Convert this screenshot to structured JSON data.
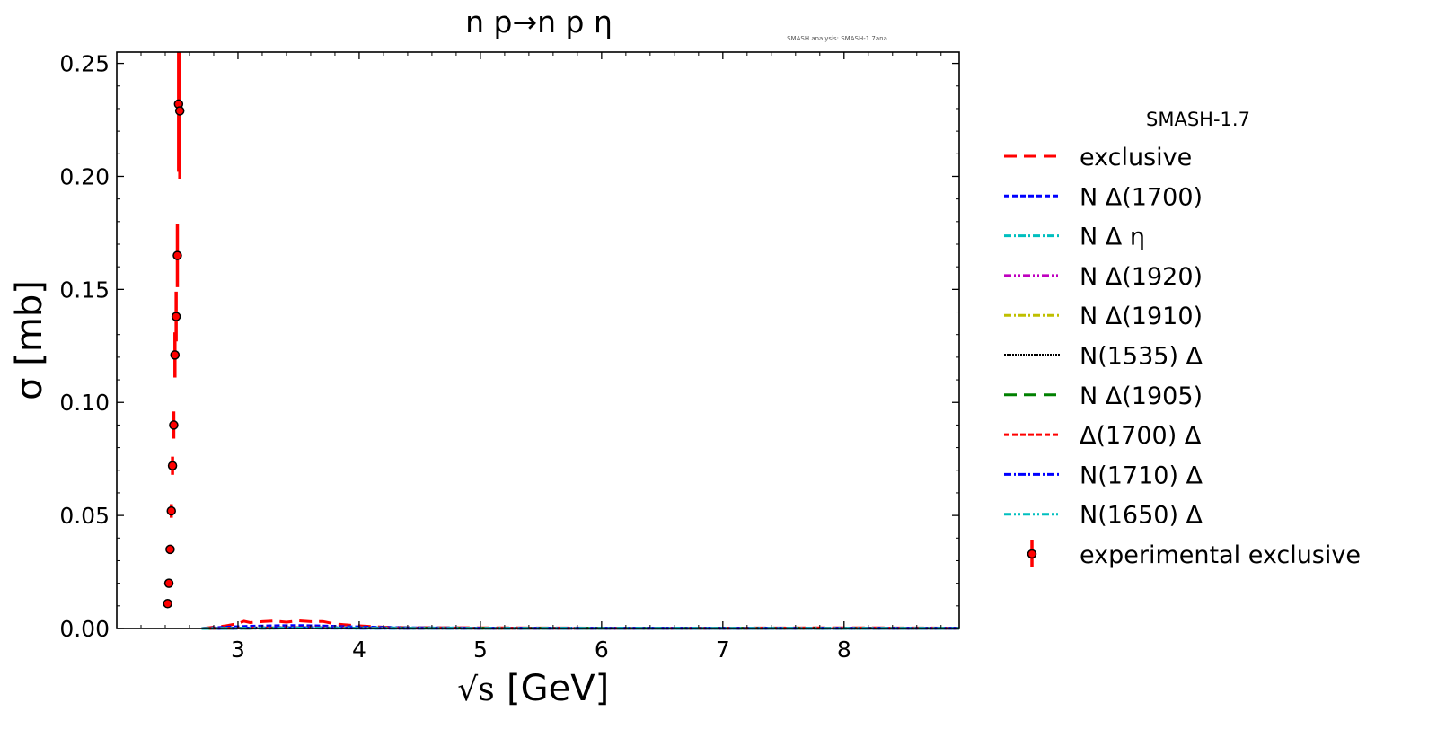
{
  "chart_data": {
    "type": "line",
    "title": "n p→n p η",
    "watermark": "SMASH analysis: SMASH-1.7ana",
    "xlabel_sqrt": "√s",
    "xlabel_unit": "[GeV]",
    "ylabel": "σ [mb]",
    "xlim": [
      2.0,
      8.95
    ],
    "ylim": [
      0,
      0.255
    ],
    "xticks": [
      3,
      4,
      5,
      6,
      7,
      8
    ],
    "yticks": [
      0.0,
      0.05,
      0.1,
      0.15,
      0.2,
      0.25
    ],
    "ytick_labels": [
      "0.00",
      "0.05",
      "0.10",
      "0.15",
      "0.20",
      "0.25"
    ],
    "legend_title": "SMASH-1.7",
    "legend_position": "outside right",
    "series": [
      {
        "name": "exclusive",
        "color": "#ff0000",
        "dash": "14,8",
        "x": [
          2.7,
          2.8,
          2.9,
          3.0,
          3.05,
          3.1,
          3.2,
          3.3,
          3.4,
          3.5,
          3.6,
          3.7,
          3.8,
          3.9,
          4.0,
          4.2,
          4.4,
          5.0,
          6.0,
          7.0,
          8.0,
          8.95
        ],
        "y": [
          0.0,
          0.0006,
          0.0012,
          0.0022,
          0.0032,
          0.0026,
          0.003,
          0.0033,
          0.0028,
          0.0034,
          0.003,
          0.0031,
          0.002,
          0.0016,
          0.0012,
          0.0006,
          0.0004,
          0.0003,
          0.0002,
          0.0002,
          0.0003,
          0.0002
        ]
      },
      {
        "name": "N Δ(1700)",
        "color": "#0000ff",
        "dash": "6,3",
        "x": [
          2.7,
          2.9,
          3.1,
          3.3,
          3.5,
          3.7,
          3.9,
          4.1,
          4.4,
          5.0,
          6.0,
          7.0,
          8.0,
          8.95
        ],
        "y": [
          0.0,
          0.0006,
          0.001,
          0.0012,
          0.0013,
          0.0011,
          0.0008,
          0.0006,
          0.0003,
          0.0002,
          0.0001,
          0.0001,
          0.0001,
          0.0001
        ]
      },
      {
        "name": "N Δ η",
        "color": "#00bfbf",
        "dash": "8,3,2,3",
        "x": [
          2.7,
          3.0,
          3.5,
          4.0,
          5.0,
          6.0,
          7.0,
          8.0,
          8.95
        ],
        "y": [
          0.0,
          0.0002,
          0.0004,
          0.0003,
          0.0002,
          0.0001,
          0.0001,
          0.0001,
          0.0001
        ]
      },
      {
        "name": "N Δ(1920)",
        "color": "#bf00bf",
        "dash": "8,3,2,3,2,3",
        "x": [
          2.7,
          3.0,
          3.5,
          4.0,
          5.0,
          6.0,
          7.0,
          8.0,
          8.95
        ],
        "y": [
          0.0,
          0.0002,
          0.0003,
          0.0002,
          0.0001,
          0.0001,
          0.0001,
          0.0001,
          0.0001
        ]
      },
      {
        "name": "N Δ(1910)",
        "color": "#bfbf00",
        "dash": "8,3,2,3",
        "x": [
          2.7,
          3.0,
          3.5,
          4.0,
          5.0,
          6.0,
          7.0,
          8.0,
          8.95
        ],
        "y": [
          0.0,
          0.0001,
          0.0002,
          0.0002,
          0.0001,
          0.0001,
          0.0001,
          0.0001,
          0.0001
        ]
      },
      {
        "name": "N(1535) Δ",
        "color": "#000000",
        "dash": "2,1",
        "x": [
          2.7,
          3.0,
          3.5,
          4.0,
          5.0,
          6.0,
          7.0,
          8.0,
          8.95
        ],
        "y": [
          0.0,
          0.0002,
          0.0003,
          0.0002,
          0.0001,
          0.0001,
          0.0001,
          0.0001,
          0.0001
        ]
      },
      {
        "name": "N Δ(1905)",
        "color": "#008000",
        "dash": "14,8",
        "x": [
          2.7,
          3.0,
          3.5,
          4.0,
          5.0,
          6.0,
          7.0,
          8.0,
          8.95
        ],
        "y": [
          0.0,
          0.0001,
          0.0002,
          0.0002,
          0.0001,
          0.0001,
          0.0001,
          0.0001,
          0.0001
        ]
      },
      {
        "name": "Δ(1700) Δ",
        "color": "#ff0000",
        "dash": "6,3",
        "x": [
          2.7,
          3.0,
          3.5,
          4.0,
          5.0,
          6.0,
          7.0,
          8.0,
          8.95
        ],
        "y": [
          0.0,
          0.0002,
          0.0003,
          0.0002,
          0.0001,
          0.0001,
          0.0001,
          0.0002,
          0.0001
        ]
      },
      {
        "name": "N(1710) Δ",
        "color": "#0000ff",
        "dash": "8,3,2,3",
        "x": [
          2.7,
          3.0,
          3.5,
          4.0,
          5.0,
          6.0,
          7.0,
          8.0,
          8.95
        ],
        "y": [
          0.0,
          0.0001,
          0.0002,
          0.0001,
          0.0001,
          0.0001,
          0.0001,
          0.0001,
          0.0001
        ]
      },
      {
        "name": "N(1650) Δ",
        "color": "#00bfbf",
        "dash": "8,3,2,3,2,3",
        "x": [
          2.7,
          3.0,
          3.5,
          4.0,
          5.0,
          6.0,
          7.0,
          8.0,
          8.95
        ],
        "y": [
          0.0,
          0.0001,
          0.0002,
          0.0001,
          0.0001,
          0.0001,
          0.0001,
          0.0001,
          0.0001
        ]
      }
    ],
    "experimental": {
      "name": "experimental exclusive",
      "color": "#ff0000",
      "marker_color": "#ff0000",
      "marker_edge": "#000000",
      "x": [
        2.42,
        2.43,
        2.44,
        2.45,
        2.46,
        2.47,
        2.48,
        2.49,
        2.5,
        2.51,
        2.52
      ],
      "y": [
        0.011,
        0.02,
        0.035,
        0.052,
        0.072,
        0.09,
        0.121,
        0.138,
        0.165,
        0.232,
        0.229
      ],
      "err": [
        0.0015,
        0.0015,
        0.002,
        0.003,
        0.004,
        0.006,
        0.01,
        0.011,
        0.014,
        0.03,
        0.03
      ]
    }
  }
}
